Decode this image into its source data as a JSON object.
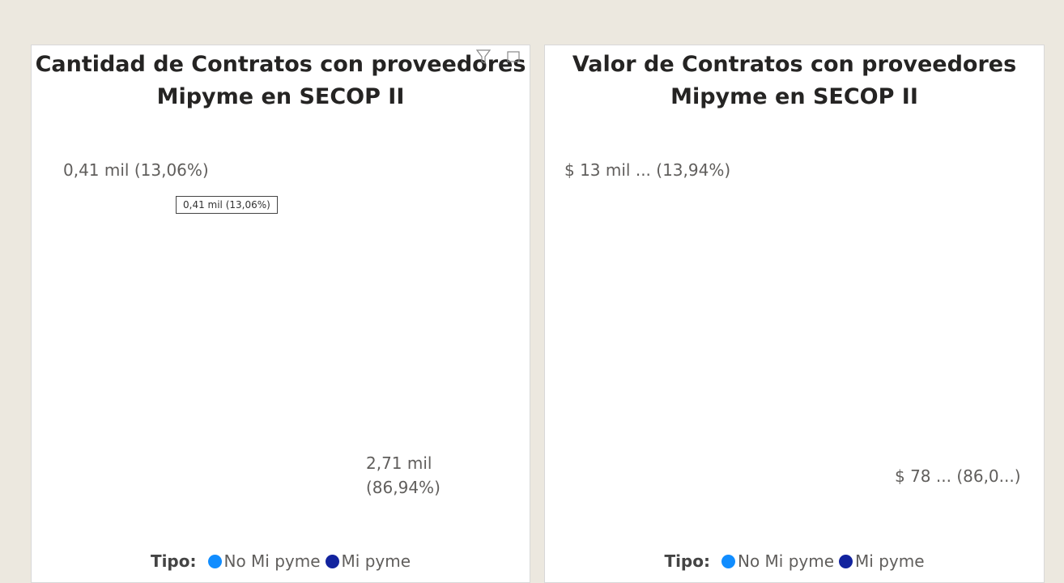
{
  "chart_data": [
    {
      "type": "donut",
      "title": "Cantidad de Contratos con proveedores Mipyme en SECOP II",
      "categories": [
        "No Mi pyme",
        "Mi pyme"
      ],
      "values": [
        86.94,
        13.06
      ],
      "value_labels": [
        "2,71 mil (86,94%)",
        "0,41 mil (13,06%)"
      ],
      "colors": [
        "#118dff",
        "#12239e"
      ],
      "legend_title": "Tipo:",
      "tooltip": "0,41 mil (13,06%)"
    },
    {
      "type": "donut",
      "title": "Valor de Contratos con proveedores Mipyme en SECOP II",
      "categories": [
        "No Mi pyme",
        "Mi pyme"
      ],
      "values": [
        86.06,
        13.94
      ],
      "value_labels": [
        "$ 78 ... (86,0...)",
        "$ 13 mil ... (13,94%)"
      ],
      "colors": [
        "#118dff",
        "#12239e"
      ],
      "legend_title": "Tipo:"
    }
  ]
}
